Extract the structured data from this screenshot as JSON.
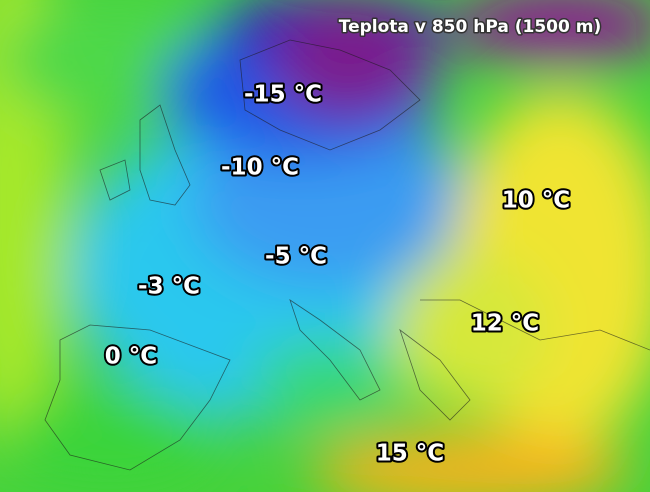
{
  "title": "Teplota v 850 hPa (1500 m)",
  "labels": [
    "-15 °C",
    "-10 °C",
    "10 °C",
    "-5 °C",
    "-3 °C",
    "12 °C",
    "0 °C",
    "15 °C"
  ]
}
